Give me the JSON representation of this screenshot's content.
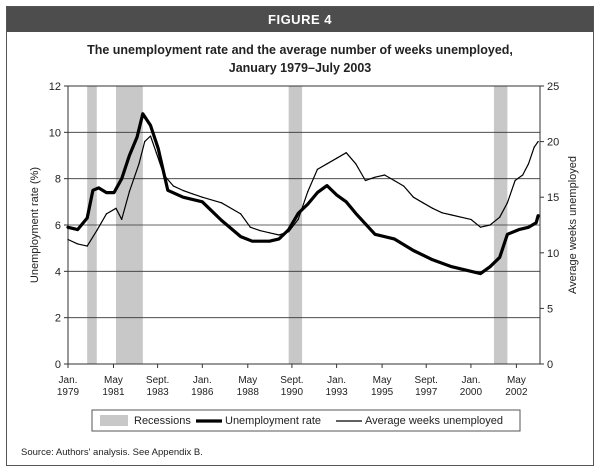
{
  "figure_label": "FIGURE 4",
  "source_note": "Source:   Authors' analysis. See Appendix B.",
  "chart_data": {
    "type": "line",
    "title": "The unemployment rate and the average number of weeks unemployed,",
    "subtitle": "January 1979–July 2003",
    "xlabel": "",
    "ylabel": "Unemployment rate (%)",
    "y2label": "Average weeks unemployed",
    "ylim": [
      0,
      12
    ],
    "y2lim": [
      0,
      25
    ],
    "yticks": [
      "0",
      "2",
      "4",
      "6",
      "8",
      "10",
      "12"
    ],
    "y2ticks": [
      "0",
      "5",
      "10",
      "15",
      "20",
      "25"
    ],
    "xlim": [
      1979.0,
      2003.6
    ],
    "xticks": [
      {
        "x": 1979.0,
        "line1": "Jan.",
        "line2": "1979"
      },
      {
        "x": 1981.37,
        "line1": "May",
        "line2": "1981"
      },
      {
        "x": 1983.67,
        "line1": "Sept.",
        "line2": "1983"
      },
      {
        "x": 1986.0,
        "line1": "Jan.",
        "line2": "1986"
      },
      {
        "x": 1988.37,
        "line1": "May",
        "line2": "1988"
      },
      {
        "x": 1990.67,
        "line1": "Sept.",
        "line2": "1990"
      },
      {
        "x": 1993.0,
        "line1": "Jan.",
        "line2": "1993"
      },
      {
        "x": 1995.37,
        "line1": "May",
        "line2": "1995"
      },
      {
        "x": 1997.67,
        "line1": "Sept.",
        "line2": "1997"
      },
      {
        "x": 2000.0,
        "line1": "Jan.",
        "line2": "2000"
      },
      {
        "x": 2002.37,
        "line1": "May",
        "line2": "2002"
      }
    ],
    "grid": "horizontal",
    "recessions": [
      [
        1980.0,
        1980.5
      ],
      [
        1981.5,
        1982.9
      ],
      [
        1990.5,
        1991.2
      ],
      [
        2001.2,
        2001.9
      ]
    ],
    "legend": {
      "placement": "bottom",
      "items": [
        "Recessions",
        "Unemployment rate",
        "Average weeks unemployed"
      ]
    },
    "series": [
      {
        "name": "Unemployment rate",
        "axis": "left",
        "x": [
          1979.0,
          1979.5,
          1980.0,
          1980.3,
          1980.6,
          1981.0,
          1981.4,
          1981.8,
          1982.2,
          1982.6,
          1982.9,
          1983.3,
          1983.7,
          1984.2,
          1985.0,
          1986.0,
          1987.0,
          1988.0,
          1988.6,
          1989.0,
          1989.5,
          1990.0,
          1990.5,
          1991.0,
          1991.5,
          1992.0,
          1992.5,
          1993.0,
          1993.5,
          1994.0,
          1995.0,
          1996.0,
          1997.0,
          1998.0,
          1999.0,
          2000.0,
          2000.5,
          2001.0,
          2001.5,
          2001.9,
          2002.5,
          2003.0,
          2003.4,
          2003.5
        ],
        "values": [
          5.9,
          5.8,
          6.3,
          7.5,
          7.6,
          7.4,
          7.4,
          8.0,
          9.0,
          9.8,
          10.8,
          10.3,
          9.3,
          7.5,
          7.2,
          7.0,
          6.2,
          5.5,
          5.3,
          5.3,
          5.3,
          5.4,
          5.8,
          6.5,
          6.9,
          7.4,
          7.7,
          7.3,
          7.0,
          6.5,
          5.6,
          5.4,
          4.9,
          4.5,
          4.2,
          4.0,
          3.9,
          4.2,
          4.6,
          5.6,
          5.8,
          5.9,
          6.1,
          6.4
        ]
      },
      {
        "name": "Average weeks unemployed",
        "axis": "right",
        "x": [
          1979.0,
          1979.5,
          1980.0,
          1980.5,
          1981.0,
          1981.5,
          1981.8,
          1982.2,
          1982.7,
          1983.0,
          1983.3,
          1983.6,
          1984.0,
          1984.5,
          1985.0,
          1985.5,
          1986.0,
          1987.0,
          1988.0,
          1988.5,
          1989.0,
          1989.5,
          1990.0,
          1990.5,
          1991.0,
          1991.5,
          1992.0,
          1992.5,
          1993.0,
          1993.5,
          1994.0,
          1994.5,
          1995.0,
          1995.5,
          1996.0,
          1996.5,
          1997.0,
          1997.5,
          1998.0,
          1998.5,
          1999.0,
          2000.0,
          2000.5,
          2001.0,
          2001.5,
          2001.9,
          2002.3,
          2002.7,
          2003.0,
          2003.3,
          2003.5
        ],
        "values": [
          11.2,
          10.8,
          10.6,
          12.0,
          13.5,
          14.0,
          13.0,
          15.5,
          18.0,
          20.0,
          20.5,
          19.0,
          17.0,
          16.0,
          15.6,
          15.3,
          15.0,
          14.5,
          13.5,
          12.3,
          12.0,
          11.8,
          11.6,
          11.9,
          13.0,
          15.5,
          17.5,
          18.0,
          18.5,
          19.0,
          18.0,
          16.5,
          16.8,
          17.0,
          16.5,
          16.0,
          15.0,
          14.5,
          14.0,
          13.6,
          13.4,
          13.0,
          12.3,
          12.5,
          13.2,
          14.5,
          16.5,
          17.0,
          18.0,
          19.5,
          20.0
        ]
      }
    ]
  }
}
